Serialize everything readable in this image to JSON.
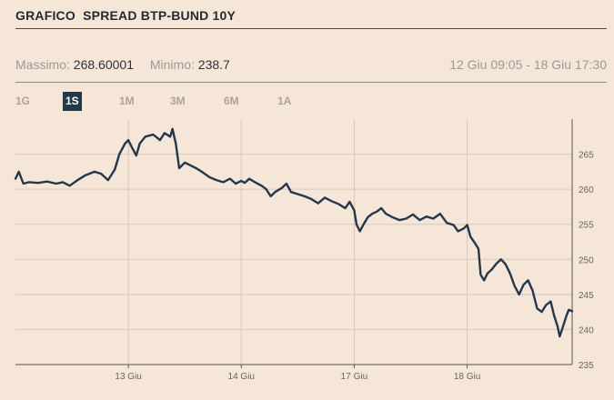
{
  "header": {
    "title": "GRAFICO  SPREAD BTP-BUND 10Y"
  },
  "stats": {
    "max_label": "Massimo:",
    "max_value": "268.60001",
    "min_label": "Minimo:",
    "min_value": "238.7",
    "range": "12 Giu 09:05 - 18 Giu 17:30"
  },
  "periods": [
    {
      "label": "1G",
      "active": false
    },
    {
      "label": "1S",
      "active": true
    },
    {
      "label": "1M",
      "active": false
    },
    {
      "label": "3M",
      "active": false
    },
    {
      "label": "6M",
      "active": false
    },
    {
      "label": "1A",
      "active": false
    }
  ],
  "colors": {
    "line": "#22394d",
    "grid": "#d7c8ba",
    "axis": "#555555",
    "background": "#f5e6d8",
    "active_tab": "#22394d"
  },
  "chart_data": {
    "type": "line",
    "title": "",
    "xlabel": "",
    "ylabel": "",
    "ylim": [
      235,
      270
    ],
    "y_ticks": [
      235,
      240,
      245,
      250,
      255,
      260,
      265
    ],
    "x_ticks": [
      "13 Giu",
      "14 Giu",
      "17 Giu",
      "18 Giu"
    ],
    "x_tick_positions": [
      1,
      2,
      3,
      4
    ],
    "xlim": [
      0.0,
      4.93
    ],
    "grid": true,
    "series": [
      {
        "values": [
          [
            0.0,
            261.5
          ],
          [
            0.03,
            262.5
          ],
          [
            0.07,
            260.8
          ],
          [
            0.12,
            261.0
          ],
          [
            0.2,
            260.9
          ],
          [
            0.28,
            261.1
          ],
          [
            0.36,
            260.8
          ],
          [
            0.42,
            261.0
          ],
          [
            0.48,
            260.5
          ],
          [
            0.55,
            261.3
          ],
          [
            0.62,
            262.0
          ],
          [
            0.7,
            262.5
          ],
          [
            0.76,
            262.2
          ],
          [
            0.82,
            261.3
          ],
          [
            0.88,
            262.8
          ],
          [
            0.92,
            265.0
          ],
          [
            0.97,
            266.5
          ],
          [
            1.0,
            267.0
          ],
          [
            1.03,
            266.0
          ],
          [
            1.07,
            264.8
          ],
          [
            1.1,
            266.5
          ],
          [
            1.15,
            267.5
          ],
          [
            1.22,
            267.8
          ],
          [
            1.28,
            267.0
          ],
          [
            1.32,
            268.0
          ],
          [
            1.37,
            267.5
          ],
          [
            1.39,
            268.6
          ],
          [
            1.42,
            266.5
          ],
          [
            1.45,
            263.0
          ],
          [
            1.5,
            263.8
          ],
          [
            1.55,
            263.4
          ],
          [
            1.6,
            263.0
          ],
          [
            1.65,
            262.5
          ],
          [
            1.72,
            261.7
          ],
          [
            1.78,
            261.3
          ],
          [
            1.84,
            261.0
          ],
          [
            1.9,
            261.5
          ],
          [
            1.95,
            260.8
          ],
          [
            2.0,
            261.2
          ],
          [
            2.03,
            260.9
          ],
          [
            2.07,
            261.5
          ],
          [
            2.12,
            261.0
          ],
          [
            2.18,
            260.5
          ],
          [
            2.22,
            260.0
          ],
          [
            2.26,
            259.0
          ],
          [
            2.3,
            259.6
          ],
          [
            2.36,
            260.2
          ],
          [
            2.4,
            260.8
          ],
          [
            2.44,
            259.6
          ],
          [
            2.5,
            259.3
          ],
          [
            2.56,
            259.0
          ],
          [
            2.62,
            258.6
          ],
          [
            2.68,
            258.0
          ],
          [
            2.74,
            258.8
          ],
          [
            2.8,
            258.3
          ],
          [
            2.86,
            257.9
          ],
          [
            2.92,
            257.3
          ],
          [
            2.96,
            258.2
          ],
          [
            3.0,
            257.0
          ],
          [
            3.02,
            255.0
          ],
          [
            3.05,
            254.0
          ],
          [
            3.08,
            254.9
          ],
          [
            3.12,
            256.0
          ],
          [
            3.16,
            256.5
          ],
          [
            3.2,
            256.8
          ],
          [
            3.24,
            257.3
          ],
          [
            3.28,
            256.5
          ],
          [
            3.34,
            256.0
          ],
          [
            3.4,
            255.6
          ],
          [
            3.46,
            255.8
          ],
          [
            3.52,
            256.4
          ],
          [
            3.58,
            255.6
          ],
          [
            3.64,
            256.1
          ],
          [
            3.7,
            255.8
          ],
          [
            3.76,
            256.5
          ],
          [
            3.82,
            255.2
          ],
          [
            3.88,
            254.9
          ],
          [
            3.92,
            254.0
          ],
          [
            3.97,
            254.4
          ],
          [
            4.0,
            254.9
          ],
          [
            4.03,
            253.2
          ],
          [
            4.07,
            252.3
          ],
          [
            4.1,
            251.5
          ],
          [
            4.12,
            247.8
          ],
          [
            4.15,
            247.0
          ],
          [
            4.18,
            248.0
          ],
          [
            4.22,
            248.6
          ],
          [
            4.26,
            249.4
          ],
          [
            4.3,
            250.0
          ],
          [
            4.34,
            249.3
          ],
          [
            4.38,
            248.0
          ],
          [
            4.42,
            246.2
          ],
          [
            4.46,
            245.0
          ],
          [
            4.5,
            246.4
          ],
          [
            4.54,
            247.0
          ],
          [
            4.58,
            245.5
          ],
          [
            4.62,
            243.0
          ],
          [
            4.66,
            242.5
          ],
          [
            4.7,
            243.5
          ],
          [
            4.74,
            244.0
          ],
          [
            4.77,
            242.0
          ],
          [
            4.8,
            240.5
          ],
          [
            4.82,
            239.0
          ],
          [
            4.85,
            240.5
          ],
          [
            4.88,
            242.0
          ],
          [
            4.9,
            242.8
          ],
          [
            4.93,
            242.6
          ]
        ]
      }
    ]
  }
}
